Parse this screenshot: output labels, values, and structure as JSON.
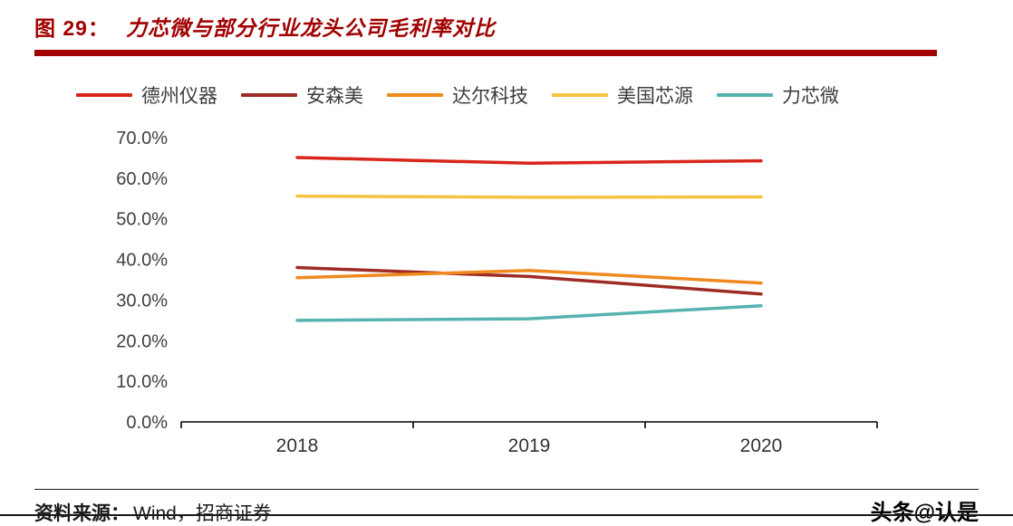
{
  "header": {
    "figure_label": "图 29：",
    "title": "力芯微与部分行业龙头公司毛利率对比",
    "accent_color": "#a00000"
  },
  "chart_data": {
    "type": "line",
    "categories": [
      "2018",
      "2019",
      "2020"
    ],
    "series": [
      {
        "name": "德州仪器",
        "color": "#d9261c",
        "values": [
          65.1,
          63.7,
          64.3
        ]
      },
      {
        "name": "安森美",
        "color": "#9e2b25",
        "values": [
          38.0,
          35.8,
          31.5
        ]
      },
      {
        "name": "达尔科技",
        "color": "#f0891e",
        "values": [
          35.5,
          37.3,
          34.2
        ]
      },
      {
        "name": "美国芯源",
        "color": "#f5c242",
        "values": [
          55.6,
          55.3,
          55.4
        ]
      },
      {
        "name": "力芯微",
        "color": "#56b3b0",
        "values": [
          25.0,
          25.4,
          28.6
        ]
      }
    ],
    "title": "力芯微与部分行业龙头公司毛利率对比",
    "xlabel": "",
    "ylabel": "",
    "ylim": [
      0,
      70
    ],
    "ytick_step": 10,
    "ytick_labels": [
      "0.0%",
      "10.0%",
      "20.0%",
      "30.0%",
      "40.0%",
      "50.0%",
      "60.0%",
      "70.0%"
    ],
    "legend_position": "top",
    "grid": false
  },
  "footer": {
    "source_label": "资料来源：",
    "source_text": "Wind，招商证券",
    "watermark": "头条@认是"
  }
}
